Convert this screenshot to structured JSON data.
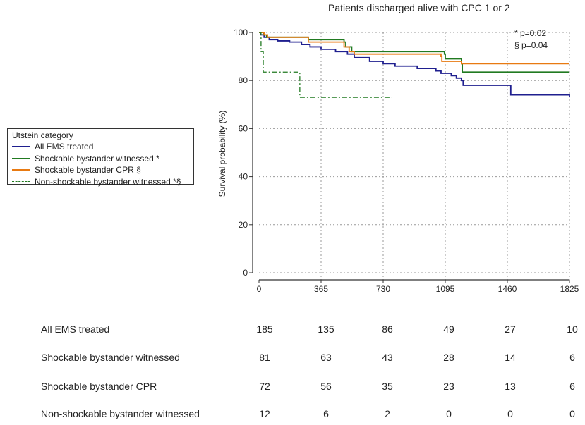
{
  "chart_data": {
    "type": "line",
    "title": "Patients discharged alive with CPC 1 or 2",
    "xlabel": "",
    "ylabel": "Survival probability (%)",
    "xlim": [
      0,
      1825
    ],
    "ylim": [
      0,
      100
    ],
    "x_ticks": [
      0,
      365,
      730,
      1095,
      1460,
      1825
    ],
    "y_ticks": [
      0,
      20,
      40,
      60,
      80,
      100
    ],
    "grid": true,
    "annotations": [
      "* p=0.02",
      "§ p=0.04"
    ],
    "legend": {
      "title": "Utstein category",
      "placement": "left-outside"
    },
    "series": [
      {
        "name": "All EMS treated",
        "color": "#1f1f8f",
        "dash": "solid",
        "steps": [
          [
            0,
            100
          ],
          [
            10,
            99
          ],
          [
            30,
            98
          ],
          [
            60,
            97
          ],
          [
            110,
            96.5
          ],
          [
            180,
            96
          ],
          [
            250,
            95
          ],
          [
            300,
            94
          ],
          [
            365,
            93
          ],
          [
            450,
            92
          ],
          [
            520,
            91
          ],
          [
            560,
            89.5
          ],
          [
            650,
            88
          ],
          [
            730,
            87
          ],
          [
            800,
            86
          ],
          [
            930,
            85
          ],
          [
            1040,
            84
          ],
          [
            1070,
            83
          ],
          [
            1130,
            82
          ],
          [
            1160,
            81
          ],
          [
            1190,
            80
          ],
          [
            1200,
            78
          ],
          [
            1480,
            74
          ],
          [
            1825,
            73
          ]
        ]
      },
      {
        "name": "Shockable bystander witnessed *",
        "color": "#217a21",
        "dash": "solid",
        "steps": [
          [
            0,
            100
          ],
          [
            25,
            99
          ],
          [
            45,
            98
          ],
          [
            290,
            97
          ],
          [
            500,
            96
          ],
          [
            510,
            94
          ],
          [
            545,
            92
          ],
          [
            1090,
            91
          ],
          [
            1095,
            89
          ],
          [
            1190,
            87
          ],
          [
            1195,
            83.5
          ],
          [
            1825,
            83.5
          ]
        ]
      },
      {
        "name": "Shockable bystander CPR  §",
        "color": "#e87a12",
        "dash": "solid",
        "steps": [
          [
            0,
            100
          ],
          [
            30,
            99
          ],
          [
            50,
            98
          ],
          [
            290,
            96
          ],
          [
            500,
            94
          ],
          [
            530,
            92
          ],
          [
            560,
            91
          ],
          [
            1070,
            90
          ],
          [
            1075,
            88
          ],
          [
            1190,
            87
          ],
          [
            1825,
            87
          ]
        ]
      },
      {
        "name": "Non-shockable bystander witnessed *§",
        "color": "#217a21",
        "dash": "dashdot",
        "steps": [
          [
            0,
            100
          ],
          [
            12,
            92
          ],
          [
            25,
            83.5
          ],
          [
            235,
            83.5
          ],
          [
            240,
            73
          ],
          [
            780,
            73
          ]
        ]
      }
    ],
    "risk_table": {
      "timepoints": [
        0,
        365,
        730,
        1095,
        1460,
        1825
      ],
      "rows": [
        {
          "label": "All EMS treated",
          "values": [
            185,
            135,
            86,
            49,
            27,
            10
          ]
        },
        {
          "label": "Shockable bystander witnessed",
          "values": [
            81,
            63,
            43,
            28,
            14,
            6
          ]
        },
        {
          "label": "Shockable bystander CPR",
          "values": [
            72,
            56,
            35,
            23,
            13,
            6
          ]
        },
        {
          "label": "Non-shockable bystander witnessed",
          "values": [
            12,
            6,
            2,
            0,
            0,
            0
          ]
        }
      ]
    }
  }
}
